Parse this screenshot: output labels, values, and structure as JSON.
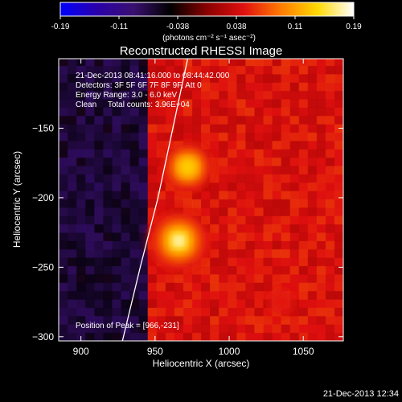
{
  "chart_data": {
    "type": "heatmap",
    "title": "Reconstructed RHESSI Image",
    "xlabel": "Heliocentric X (arcsec)",
    "ylabel": "Heliocentric Y (arcsec)",
    "xlim": [
      885,
      1077
    ],
    "ylim": [
      -303,
      -100
    ],
    "x_ticks": [
      900,
      950,
      1000,
      1050
    ],
    "y_ticks": [
      -150,
      -200,
      -250,
      -300
    ],
    "colorbar": {
      "min": -0.19,
      "max": 0.19,
      "ticks": [
        "-0.19",
        "-0.11",
        "-0.038",
        "0.038",
        "0.11",
        "0.19"
      ],
      "unit_label": "(photons cm⁻² s⁻¹ asec⁻²)"
    },
    "colormap": [
      "#0000ff",
      "#2a00aa",
      "#3a1070",
      "#000000",
      "#8a0000",
      "#e01010",
      "#ff7a00",
      "#ffd800",
      "#ffffff"
    ],
    "sources": [
      {
        "x": 966,
        "y": -231,
        "peak": 0.19
      },
      {
        "x": 972,
        "y": -178,
        "peak": 0.15
      },
      {
        "x": 1035,
        "y": -275,
        "peak": 0.06
      }
    ],
    "background_regions": [
      {
        "x_from": 885,
        "x_to": 945,
        "level": -0.07
      },
      {
        "x_from": 945,
        "x_to": 1077,
        "level": 0.045
      }
    ],
    "limb_curve": [
      [
        928,
        -303
      ],
      [
        940,
        -250
      ],
      [
        952,
        -200
      ],
      [
        962,
        -150
      ],
      [
        972,
        -100
      ]
    ],
    "annotations": [
      "21-Dec-2013 08:41:16.000 to 08:44:42.000",
      "Detectors: 3F 5F 6F 7F 8F 9F, Att 0",
      "Energy Range: 3.0 - 6.0 keV",
      "Clean     Total counts: 3.96E+04"
    ],
    "peak_label": "Position of Peak = [966,-231]",
    "timestamp": "21-Dec-2013 12:34"
  }
}
